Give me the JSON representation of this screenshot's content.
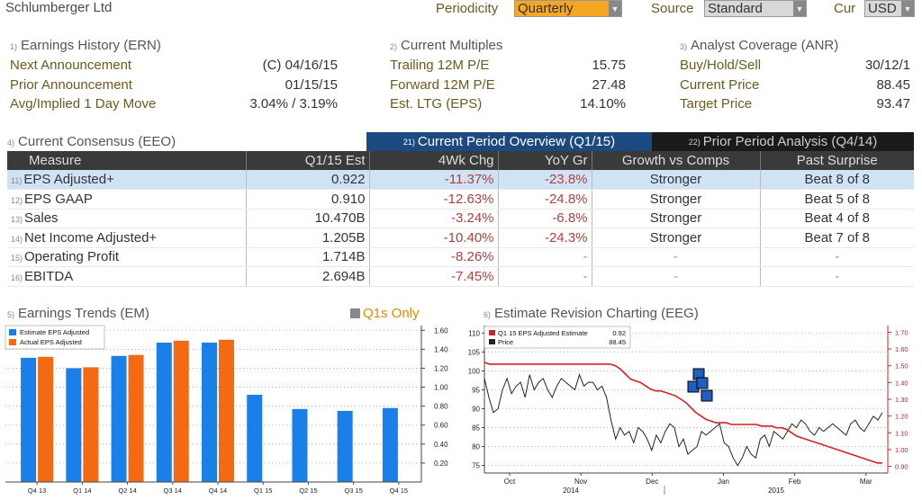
{
  "header": {
    "company": "Schlumberger Ltd",
    "periodicity_label": "Periodicity",
    "periodicity_value": "Quarterly",
    "source_label": "Source",
    "source_value": "Standard",
    "cur_label": "Cur",
    "cur_value": "USD"
  },
  "earnings_history": {
    "num": "1)",
    "title": "Earnings History (ERN)",
    "rows": [
      {
        "label": "Next Announcement",
        "value": "(C)  04/16/15"
      },
      {
        "label": "Prior Announcement",
        "value": "01/15/15"
      },
      {
        "label": "Avg/Implied 1 Day Move",
        "value": "3.04% / 3.19%"
      }
    ]
  },
  "current_multiples": {
    "num": "2)",
    "title": "Current Multiples",
    "rows": [
      {
        "label": "Trailing 12M P/E",
        "value": "15.75"
      },
      {
        "label": "Forward 12M P/E",
        "value": "27.48"
      },
      {
        "label": "Est. LTG (EPS)",
        "value": "14.10%"
      }
    ]
  },
  "analyst_coverage": {
    "num": "3)",
    "title": "Analyst Coverage (ANR)",
    "rows": [
      {
        "label": "Buy/Hold/Sell",
        "value": "30/12/1"
      },
      {
        "label": "Current Price",
        "value": "88.45"
      },
      {
        "label": "Target Price",
        "value": "93.47"
      }
    ]
  },
  "consensus": {
    "num": "4)",
    "title": "Current Consensus (EEO)",
    "tab1_num": "21)",
    "tab1": "Current Period Overview (Q1/15)",
    "tab2_num": "22)",
    "tab2": "Prior Period Analysis (Q4/14)",
    "headers": [
      "Measure",
      "Q1/15 Est",
      "4Wk Chg",
      "YoY Gr",
      "Growth vs Comps",
      "Past Surprise"
    ],
    "rows": [
      {
        "num": "11)",
        "measure": "EPS Adjusted+",
        "est": "0.922",
        "chg": "-11.37%",
        "yoy": "-23.8%",
        "growth": "Stronger",
        "surprise": "Beat 8 of 8"
      },
      {
        "num": "12)",
        "measure": "EPS GAAP",
        "est": "0.910",
        "chg": "-12.63%",
        "yoy": "-24.8%",
        "growth": "Stronger",
        "surprise": "Beat 5 of 8"
      },
      {
        "num": "13)",
        "measure": "Sales",
        "est": "10.470B",
        "chg": "-3.24%",
        "yoy": "-6.8%",
        "growth": "Stronger",
        "surprise": "Beat 4 of 8"
      },
      {
        "num": "14)",
        "measure": "Net Income Adjusted+",
        "est": "1.205B",
        "chg": "-10.40%",
        "yoy": "-24.3%",
        "growth": "Stronger",
        "surprise": "Beat 7 of 8"
      },
      {
        "num": "15)",
        "measure": "Operating Profit",
        "est": "1.714B",
        "chg": "-8.26%",
        "yoy": "-",
        "growth": "-",
        "surprise": "-"
      },
      {
        "num": "16)",
        "measure": "EBITDA",
        "est": "2.694B",
        "chg": "-7.45%",
        "yoy": "-",
        "growth": "-",
        "surprise": "-"
      }
    ]
  },
  "trends": {
    "num": "5)",
    "title": "Earnings Trends (EM)",
    "q1s_label": "Q1s Only",
    "legend_est": "Estimate EPS Adjusted",
    "legend_act": "Actual EPS Adjusted"
  },
  "revision": {
    "num": "6)",
    "title": "Estimate Revision Charting (EEG)",
    "legend_est": "Q1 15 EPS Adjusted Estimate",
    "legend_est_val": "0.92",
    "legend_price": "Price",
    "legend_price_val": "88.45"
  },
  "colors": {
    "estimate": "#1a7fe8",
    "actual": "#f36a12",
    "est_line": "#d82020",
    "price_line": "#222222"
  },
  "chart_data": [
    {
      "type": "bar",
      "categories": [
        "Q4 13",
        "Q1 14",
        "Q2 14",
        "Q3 14",
        "Q4 14",
        "Q1 15",
        "Q2 15",
        "Q3 15",
        "Q4 15"
      ],
      "series": [
        {
          "name": "Estimate EPS Adjusted",
          "values": [
            1.31,
            1.2,
            1.33,
            1.47,
            1.47,
            0.92,
            0.77,
            0.75,
            0.78
          ]
        },
        {
          "name": "Actual EPS Adjusted",
          "values": [
            1.32,
            1.21,
            1.34,
            1.49,
            1.5,
            null,
            null,
            null,
            null
          ]
        }
      ],
      "yticks": [
        "0.20",
        "0.40",
        "0.60",
        "0.80",
        "1.00",
        "1.20",
        "1.40",
        "1.60"
      ],
      "ylim": [
        0.0,
        1.65
      ]
    },
    {
      "type": "line",
      "x_labels": [
        "Oct",
        "Nov",
        "Dec",
        "Jan",
        "Feb",
        "Mar"
      ],
      "x_year_labels": [
        "2014",
        "2015"
      ],
      "left_ticks": [
        "75",
        "80",
        "85",
        "90",
        "95",
        "100",
        "105",
        "110"
      ],
      "right_ticks": [
        "0.90",
        "1.00",
        "1.10",
        "1.20",
        "1.30",
        "1.40",
        "1.50",
        "1.60",
        "1.70"
      ],
      "left_ylim": [
        73,
        112
      ],
      "right_ylim": [
        0.86,
        1.74
      ],
      "series": [
        {
          "name": "Price",
          "axis": "left",
          "values": [
            98,
            93,
            89,
            90,
            95,
            98,
            94,
            96,
            97,
            93,
            99,
            95,
            97,
            98,
            95,
            93,
            96,
            98,
            97,
            96,
            95,
            99,
            96,
            97,
            97,
            95,
            96,
            93,
            87,
            82,
            85,
            83,
            84,
            81,
            85,
            84,
            82,
            79,
            83,
            81,
            84,
            86,
            85,
            80,
            82,
            78,
            79,
            80,
            84,
            83,
            84,
            85,
            86,
            81,
            80,
            77,
            75,
            77,
            80,
            78,
            77,
            82,
            83,
            80,
            84,
            83,
            82,
            84,
            86,
            85,
            87,
            86,
            84,
            83,
            85,
            84,
            85,
            86,
            85,
            84,
            83,
            86,
            87,
            85,
            84,
            86,
            88,
            87,
            89
          ]
        },
        {
          "name": "Q1 15 EPS Adjusted Estimate",
          "axis": "right",
          "values": [
            1.52,
            1.51,
            1.51,
            1.51,
            1.51,
            1.51,
            1.51,
            1.51,
            1.51,
            1.51,
            1.51,
            1.51,
            1.51,
            1.51,
            1.51,
            1.51,
            1.51,
            1.51,
            1.51,
            1.51,
            1.51,
            1.51,
            1.51,
            1.51,
            1.51,
            1.51,
            1.5,
            1.48,
            1.45,
            1.42,
            1.41,
            1.4,
            1.38,
            1.36,
            1.35,
            1.35,
            1.34,
            1.33,
            1.32,
            1.3,
            1.28,
            1.25,
            1.22,
            1.2,
            1.18,
            1.17,
            1.16,
            1.16,
            1.16,
            1.15,
            1.15,
            1.15,
            1.15,
            1.15,
            1.15,
            1.14,
            1.14,
            1.14,
            1.13,
            1.13,
            1.12,
            1.1,
            1.08,
            1.07,
            1.06,
            1.05,
            1.04,
            1.03,
            1.02,
            1.01,
            1.0,
            0.99,
            0.98,
            0.97,
            0.96,
            0.95,
            0.94,
            0.93,
            0.92,
            0.92
          ]
        }
      ]
    }
  ]
}
